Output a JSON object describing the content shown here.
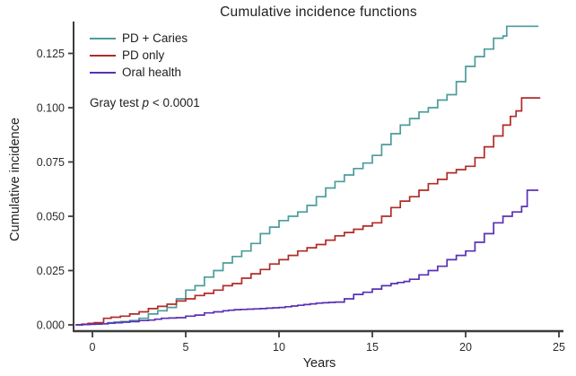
{
  "chart_data": {
    "type": "line",
    "variant": "step-function cumulative incidence curves",
    "title": "Cumulative incidence functions",
    "xlabel": "Years",
    "ylabel": "Cumulative incidence",
    "xlim": [
      -1,
      25.3
    ],
    "ylim": [
      0,
      0.139
    ],
    "grid": false,
    "legend_position": "top-left inside plot",
    "xticks": [
      0,
      5,
      10,
      15,
      20,
      25
    ],
    "yticks": [
      {
        "label": "0.000",
        "value": 0.0
      },
      {
        "label": "0.025",
        "value": 0.025
      },
      {
        "label": "0.050",
        "value": 0.05
      },
      {
        "label": "0.075",
        "value": 0.075
      },
      {
        "label": "0.100",
        "value": 0.1
      },
      {
        "label": "0.125",
        "value": 0.125
      }
    ],
    "annotation": {
      "prefix": "Gray test",
      "p_symbol": "p",
      "suffix": "< 0.0001"
    },
    "axis_color": "#3c3c3c",
    "text_color": "#2b2b2b",
    "series": [
      {
        "name": "PD + Caries",
        "color": "#4C9C9C",
        "points": [
          [
            -0.9,
            0
          ],
          [
            0.3,
            0.0005
          ],
          [
            0.8,
            0.001
          ],
          [
            1.5,
            0.0015
          ],
          [
            2,
            0.002
          ],
          [
            2.5,
            0.003
          ],
          [
            3,
            0.005
          ],
          [
            3.5,
            0.0065
          ],
          [
            4,
            0.008
          ],
          [
            4.5,
            0.012
          ],
          [
            5,
            0.016
          ],
          [
            5.5,
            0.018
          ],
          [
            6,
            0.022
          ],
          [
            6.5,
            0.025
          ],
          [
            7,
            0.0285
          ],
          [
            7.5,
            0.0315
          ],
          [
            8,
            0.034
          ],
          [
            8.5,
            0.0375
          ],
          [
            9,
            0.042
          ],
          [
            9.5,
            0.045
          ],
          [
            10,
            0.048
          ],
          [
            10.5,
            0.05
          ],
          [
            11,
            0.052
          ],
          [
            11.5,
            0.055
          ],
          [
            12,
            0.059
          ],
          [
            12.5,
            0.063
          ],
          [
            13,
            0.066
          ],
          [
            13.5,
            0.069
          ],
          [
            14,
            0.072
          ],
          [
            14.5,
            0.0745
          ],
          [
            15,
            0.078
          ],
          [
            15.5,
            0.083
          ],
          [
            16,
            0.088
          ],
          [
            16.5,
            0.092
          ],
          [
            17,
            0.095
          ],
          [
            17.5,
            0.098
          ],
          [
            18,
            0.1
          ],
          [
            18.5,
            0.1035
          ],
          [
            19,
            0.106
          ],
          [
            19.5,
            0.112
          ],
          [
            20,
            0.119
          ],
          [
            20.5,
            0.1235
          ],
          [
            21,
            0.127
          ],
          [
            21.5,
            0.132
          ],
          [
            22,
            0.133
          ],
          [
            22.2,
            0.1375
          ],
          [
            23.9,
            0.1375
          ]
        ]
      },
      {
        "name": "PD only",
        "color": "#B02C28",
        "points": [
          [
            -0.9,
            0
          ],
          [
            0.1,
            0.001
          ],
          [
            0.6,
            0.003
          ],
          [
            1,
            0.0035
          ],
          [
            1.5,
            0.004
          ],
          [
            2,
            0.005
          ],
          [
            2.5,
            0.006
          ],
          [
            3,
            0.0075
          ],
          [
            3.5,
            0.0085
          ],
          [
            4,
            0.0095
          ],
          [
            4.5,
            0.011
          ],
          [
            5,
            0.012
          ],
          [
            5.5,
            0.0135
          ],
          [
            6,
            0.0145
          ],
          [
            6.5,
            0.016
          ],
          [
            7,
            0.018
          ],
          [
            7.5,
            0.019
          ],
          [
            8,
            0.0215
          ],
          [
            8.5,
            0.0235
          ],
          [
            9,
            0.0255
          ],
          [
            9.5,
            0.028
          ],
          [
            10,
            0.03
          ],
          [
            10.5,
            0.032
          ],
          [
            11,
            0.034
          ],
          [
            11.5,
            0.0355
          ],
          [
            12,
            0.037
          ],
          [
            12.5,
            0.039
          ],
          [
            13,
            0.041
          ],
          [
            13.5,
            0.0425
          ],
          [
            14,
            0.044
          ],
          [
            14.5,
            0.0455
          ],
          [
            15,
            0.047
          ],
          [
            15.5,
            0.05
          ],
          [
            16,
            0.054
          ],
          [
            16.5,
            0.057
          ],
          [
            17,
            0.059
          ],
          [
            17.5,
            0.062
          ],
          [
            18,
            0.065
          ],
          [
            18.5,
            0.067
          ],
          [
            19,
            0.07
          ],
          [
            19.5,
            0.0715
          ],
          [
            20,
            0.073
          ],
          [
            20.5,
            0.077
          ],
          [
            21,
            0.082
          ],
          [
            21.5,
            0.087
          ],
          [
            22,
            0.092
          ],
          [
            22.4,
            0.096
          ],
          [
            22.7,
            0.0985
          ],
          [
            23,
            0.1045
          ],
          [
            24,
            0.1045
          ]
        ]
      },
      {
        "name": "Oral health",
        "color": "#5A30B5",
        "points": [
          [
            -0.9,
            0
          ],
          [
            0.5,
            0.0005
          ],
          [
            1.2,
            0.001
          ],
          [
            2,
            0.0015
          ],
          [
            2.5,
            0.002
          ],
          [
            3,
            0.0022
          ],
          [
            3.7,
            0.003
          ],
          [
            4.5,
            0.0033
          ],
          [
            5,
            0.004
          ],
          [
            5.5,
            0.0045
          ],
          [
            6,
            0.0055
          ],
          [
            6.5,
            0.006
          ],
          [
            7,
            0.0065
          ],
          [
            7.6,
            0.007
          ],
          [
            9,
            0.0075
          ],
          [
            10,
            0.008
          ],
          [
            11,
            0.009
          ],
          [
            12,
            0.01
          ],
          [
            13,
            0.0105
          ],
          [
            13.5,
            0.012
          ],
          [
            14,
            0.014
          ],
          [
            14.5,
            0.015
          ],
          [
            15,
            0.0165
          ],
          [
            15.5,
            0.018
          ],
          [
            16,
            0.019
          ],
          [
            16.7,
            0.02
          ],
          [
            17,
            0.021
          ],
          [
            17.5,
            0.023
          ],
          [
            18,
            0.025
          ],
          [
            18.5,
            0.027
          ],
          [
            19,
            0.03
          ],
          [
            19.5,
            0.032
          ],
          [
            20,
            0.034
          ],
          [
            20.5,
            0.038
          ],
          [
            21,
            0.042
          ],
          [
            21.5,
            0.047
          ],
          [
            22,
            0.05
          ],
          [
            22.5,
            0.052
          ],
          [
            23,
            0.0545
          ],
          [
            23.3,
            0.062
          ],
          [
            23.9,
            0.062
          ]
        ]
      }
    ]
  }
}
